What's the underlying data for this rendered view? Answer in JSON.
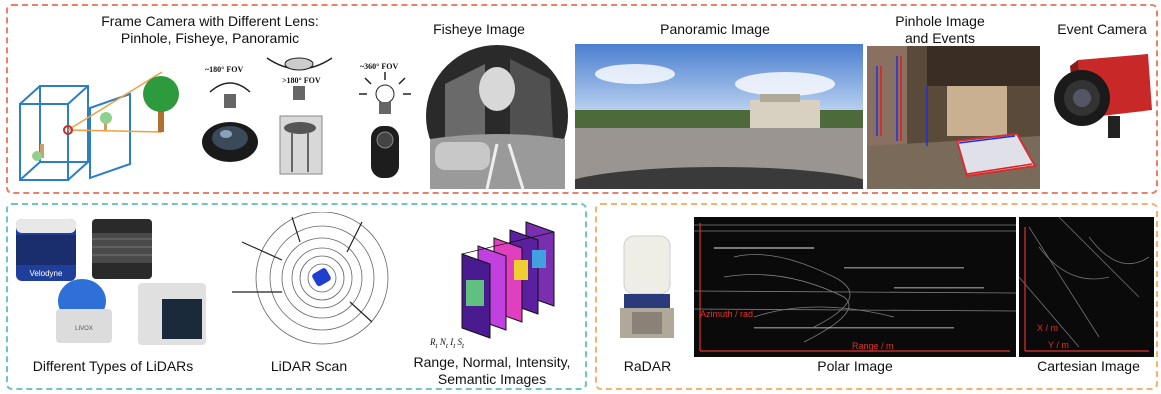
{
  "frame_camera": {
    "title_line1": "Frame Camera with Different Lens:",
    "title_line2": "Pinhole, Fisheye, Panoramic",
    "fov_fisheye": "~180° FOV",
    "fov_wide": ">180° FOV",
    "fov_pano": "~360° FOV"
  },
  "fisheye": {
    "label": "Fisheye Image"
  },
  "panoramic": {
    "label": "Panoramic Image"
  },
  "pinhole_events": {
    "label_line1": "Pinhole Image",
    "label_line2": "and Events"
  },
  "event_camera": {
    "label": "Event Camera"
  },
  "lidars": {
    "label": "Different Types of LiDARs",
    "brand1": "Velodyne",
    "brand2": "LIVOX"
  },
  "lidar_scan": {
    "label": "LiDAR Scan"
  },
  "images_stack": {
    "label_line1": "Range, Normal, Intensity,",
    "label_line2": "Semantic Images",
    "sym1": "R",
    "sym2": "N",
    "sym3": "I",
    "sym4": "S",
    "sub": "t"
  },
  "radar": {
    "label": "RaDAR"
  },
  "polar": {
    "label": "Polar Image",
    "axis_azimuth": "Azimuth / rad",
    "axis_range": "Range / m"
  },
  "cartesian": {
    "label": "Cartesian Image",
    "axis_x": "X / m",
    "axis_y": "Y / m"
  },
  "colors": {
    "top_border": "#e8806a",
    "lidar_border": "#6fc5bf",
    "radar_border": "#f2b36f",
    "axis_red": "#e03030"
  }
}
